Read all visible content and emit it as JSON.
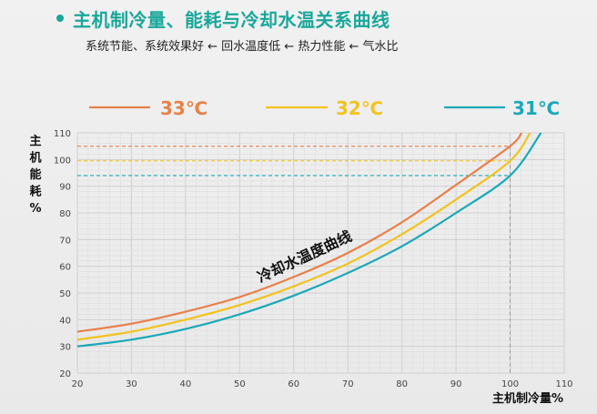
{
  "header": {
    "title": "主机制冷量、能耗与冷却水温关系曲线",
    "subtitle": "系统节能、系统效果好 ← 回水温度低 ← 热力性能 ← 气水比"
  },
  "chart_data": {
    "type": "line",
    "title": "主机制冷量、能耗与冷却水温关系曲线",
    "xlabel": "主机制冷量%",
    "ylabel": "主机能耗%",
    "xlim": [
      20,
      110
    ],
    "ylim": [
      20,
      110
    ],
    "xticks": [
      20,
      30,
      40,
      50,
      60,
      70,
      80,
      90,
      100,
      110
    ],
    "yticks": [
      20,
      30,
      40,
      50,
      60,
      70,
      80,
      90,
      100,
      110
    ],
    "grid": true,
    "legend_position": "top",
    "annotation": "冷却水温度曲线",
    "reference_lines": {
      "vertical_x": 100,
      "horizontal": [
        {
          "series": "33℃",
          "y": 105,
          "color": "#e8804a"
        },
        {
          "series": "32℃",
          "y": 99.5,
          "color": "#f2c31d"
        },
        {
          "series": "31℃",
          "y": 94,
          "color": "#1aa8b8"
        }
      ]
    },
    "series": [
      {
        "name": "33℃",
        "color": "#e8804a",
        "x": [
          20,
          30,
          40,
          50,
          60,
          70,
          80,
          90,
          100,
          102.1
        ],
        "y": [
          35.5,
          38.5,
          43,
          48.5,
          56,
          65,
          76.5,
          90.5,
          105,
          110
        ]
      },
      {
        "name": "32℃",
        "color": "#f2c31d",
        "x": [
          20,
          30,
          40,
          50,
          60,
          70,
          80,
          90,
          100,
          103.7
        ],
        "y": [
          32.5,
          35.5,
          40,
          45.5,
          52.5,
          61,
          72,
          85,
          99.5,
          110
        ]
      },
      {
        "name": "31℃",
        "color": "#1aa8b8",
        "x": [
          20,
          30,
          40,
          50,
          60,
          70,
          80,
          90,
          100,
          105.7
        ],
        "y": [
          30,
          32.5,
          36.5,
          42,
          49,
          57.5,
          67.5,
          80,
          94,
          110
        ]
      }
    ]
  }
}
